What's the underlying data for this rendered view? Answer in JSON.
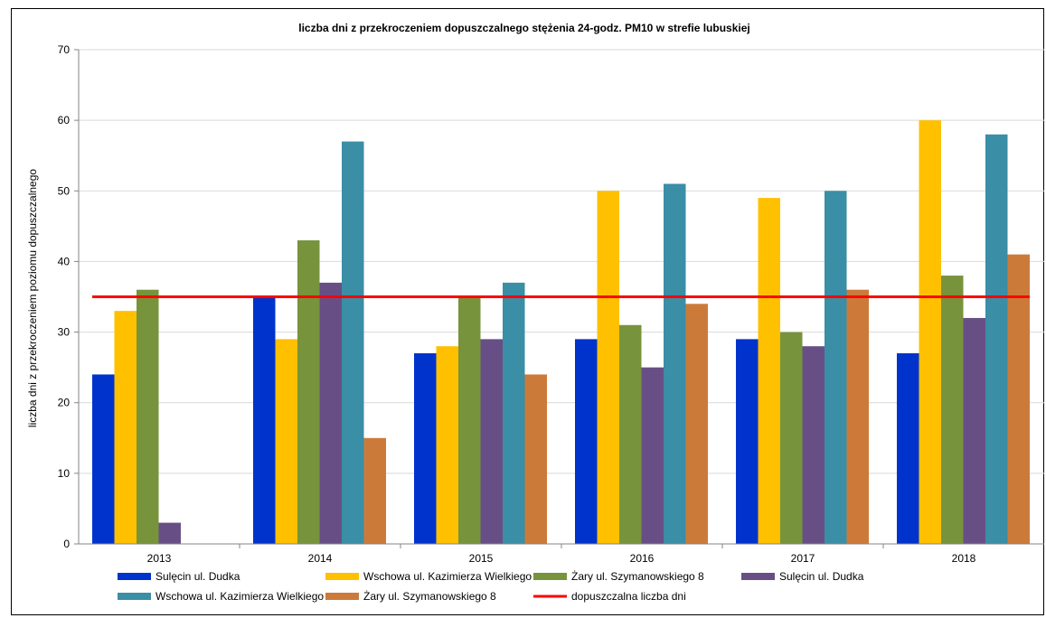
{
  "chart_data": {
    "type": "bar",
    "title": "liczba dni z przekroczeniem dopuszczalnego stężenia 24-godz. PM10  w strefie lubuskiej",
    "xlabel": "",
    "ylabel": "liczba dni z przekroczeniem poziomu dopuszczalnego",
    "ylim": [
      0,
      70
    ],
    "yticks": [
      0,
      10,
      20,
      30,
      40,
      50,
      60,
      70
    ],
    "categories": [
      "2013",
      "2014",
      "2015",
      "2016",
      "2017",
      "2018"
    ],
    "series": [
      {
        "name": "Sulęcin ul. Dudka",
        "color": "#0033cc",
        "values": [
          24,
          35,
          27,
          29,
          29,
          27
        ]
      },
      {
        "name": "Wschowa ul. Kazimierza Wielkiego",
        "color": "#ffc000",
        "values": [
          33,
          29,
          28,
          50,
          49,
          60
        ]
      },
      {
        "name": "Żary ul. Szymanowskiego 8",
        "color": "#77933c",
        "values": [
          36,
          43,
          35,
          31,
          30,
          38
        ]
      },
      {
        "name": "Sulęcin ul. Dudka",
        "color": "#674f86",
        "values": [
          3,
          37,
          29,
          25,
          28,
          32
        ]
      },
      {
        "name": "Wschowa ul. Kazimierza Wielkiego",
        "color": "#3a8ea6",
        "values": [
          null,
          57,
          37,
          51,
          50,
          58
        ]
      },
      {
        "name": "Żary ul. Szymanowskiego 8",
        "color": "#cc7a3a",
        "values": [
          null,
          15,
          24,
          34,
          36,
          41
        ]
      }
    ],
    "reference_line": {
      "name": "dopuszczalna liczba dni",
      "value": 35,
      "color": "#ff0000"
    },
    "grid": true,
    "legend": "bottom"
  }
}
